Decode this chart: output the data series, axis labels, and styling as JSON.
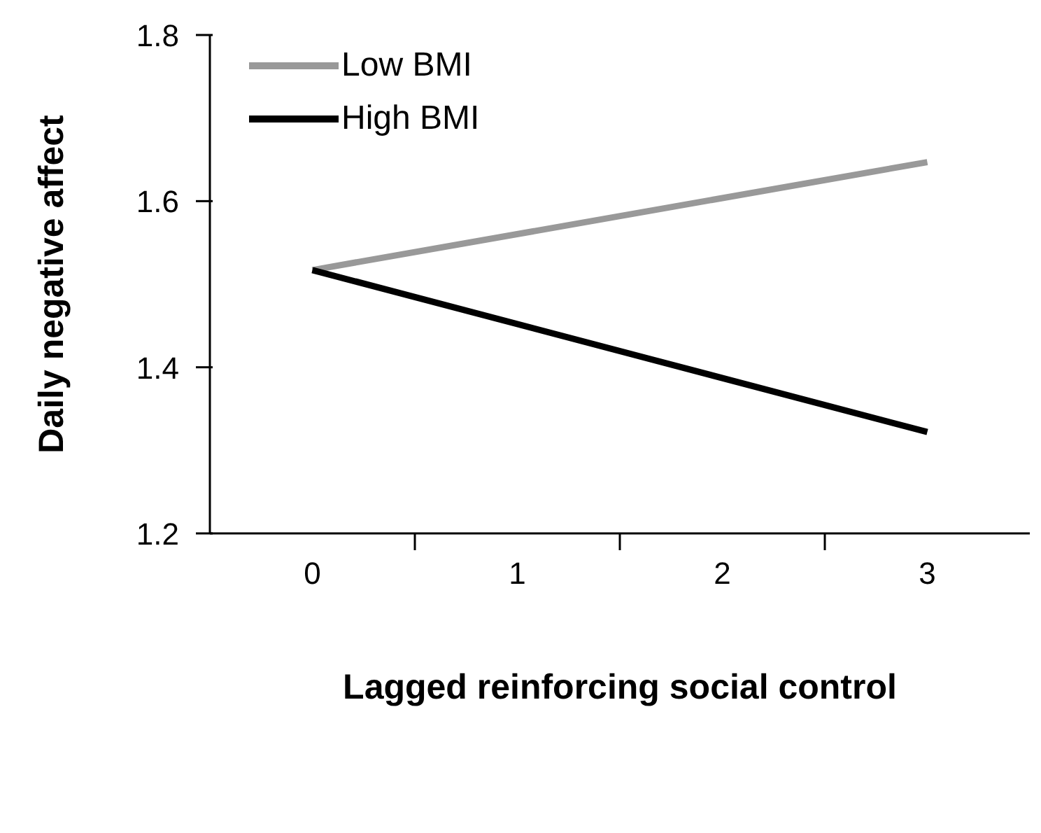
{
  "chart_data": {
    "type": "line",
    "xlabel": "Lagged reinforcing social control",
    "ylabel": "Daily negative affect",
    "x": [
      0,
      3
    ],
    "xlim": [
      -0.5,
      3.5
    ],
    "xticks": [
      {
        "value": 0,
        "label": "0"
      },
      {
        "value": 0.5,
        "label": null
      },
      {
        "value": 1,
        "label": "1"
      },
      {
        "value": 1.5,
        "label": null
      },
      {
        "value": 2,
        "label": "2"
      },
      {
        "value": 2.5,
        "label": null
      },
      {
        "value": 3,
        "label": "3"
      }
    ],
    "ylim": [
      1.2,
      1.8
    ],
    "yticks": [
      1.2,
      1.4,
      1.6,
      1.8
    ],
    "grid": false,
    "legend": "top left",
    "marker": "none",
    "line_style": "solid",
    "series": [
      {
        "name": "Low BMI",
        "color": "#999999",
        "values": [
          1.517,
          1.647
        ]
      },
      {
        "name": "High BMI",
        "color": "#000000",
        "values": [
          1.517,
          1.322
        ]
      }
    ]
  }
}
